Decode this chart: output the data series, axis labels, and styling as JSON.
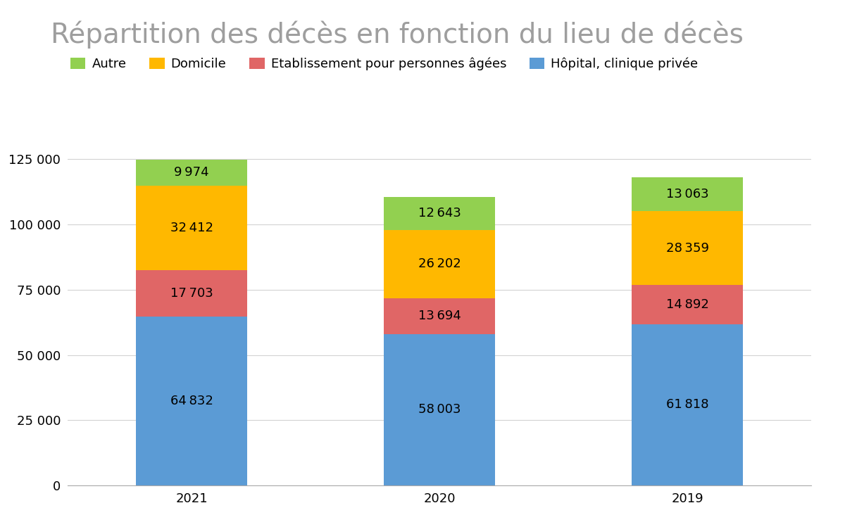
{
  "title": "Répartition des décès en fonction du lieu de décès",
  "categories": [
    "2021",
    "2020",
    "2019"
  ],
  "series": [
    {
      "label": "Hôpital, clinique privée",
      "values": [
        64832,
        58003,
        61818
      ],
      "color": "#5B9BD5"
    },
    {
      "label": "Etablissement pour personnes âgées",
      "values": [
        17703,
        13694,
        14892
      ],
      "color": "#E06666"
    },
    {
      "label": "Domicile",
      "values": [
        32412,
        26202,
        28359
      ],
      "color": "#FFB800"
    },
    {
      "label": "Autre",
      "values": [
        9974,
        12643,
        13063
      ],
      "color": "#92D050"
    }
  ],
  "ylim": [
    0,
    130000
  ],
  "yticks": [
    0,
    25000,
    50000,
    75000,
    100000,
    125000
  ],
  "ytick_labels": [
    "0",
    "25 000",
    "50 000",
    "75 000",
    "100 000",
    "125 000"
  ],
  "title_fontsize": 28,
  "legend_fontsize": 13,
  "tick_fontsize": 13,
  "label_fontsize": 13,
  "bar_width": 0.45,
  "background_color": "#FFFFFF",
  "title_color": "#9E9E9E",
  "grid_color": "#D3D3D3",
  "text_color": "#000000",
  "legend_order": [
    3,
    2,
    1,
    0
  ]
}
